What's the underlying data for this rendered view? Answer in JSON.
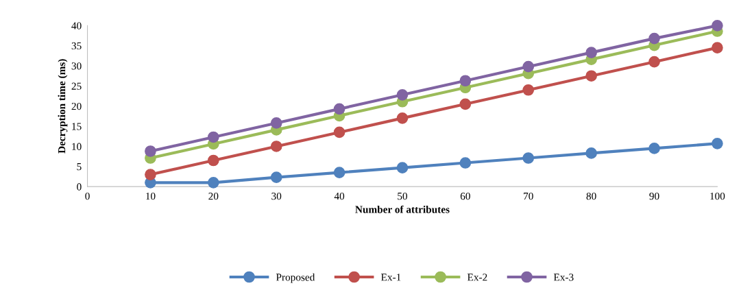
{
  "chart_data": {
    "type": "line",
    "xlabel": "Number of attributes",
    "ylabel": "Decryption time (ms)",
    "x": [
      10,
      20,
      30,
      40,
      50,
      60,
      70,
      80,
      90,
      100
    ],
    "series": [
      {
        "name": "Proposed",
        "color": "#4f81bd",
        "values": [
          1.0,
          1.0,
          2.3,
          3.5,
          4.7,
          5.9,
          7.1,
          8.3,
          9.5,
          10.7
        ]
      },
      {
        "name": "Ex-1",
        "color": "#c0504d",
        "values": [
          3.0,
          6.5,
          10.0,
          13.5,
          17.0,
          20.5,
          24.0,
          27.5,
          31.0,
          34.5
        ]
      },
      {
        "name": "Ex-2",
        "color": "#9bbb59",
        "values": [
          7.1,
          10.6,
          14.1,
          17.6,
          21.1,
          24.6,
          28.1,
          31.6,
          35.1,
          38.6
        ]
      },
      {
        "name": "Ex-3",
        "color": "#8064a2",
        "values": [
          8.8,
          12.3,
          15.8,
          19.3,
          22.8,
          26.3,
          29.8,
          33.3,
          36.8,
          40.0
        ]
      }
    ],
    "xlim": [
      0,
      100
    ],
    "xticks": [
      0,
      10,
      20,
      30,
      40,
      50,
      60,
      70,
      80,
      90,
      100
    ],
    "ylim": [
      0,
      40
    ],
    "yticks": [
      0,
      5,
      10,
      15,
      20,
      25,
      30,
      35,
      40
    ],
    "grid": false,
    "legend": "bottom",
    "marker": "circle",
    "line_style": "solid"
  }
}
